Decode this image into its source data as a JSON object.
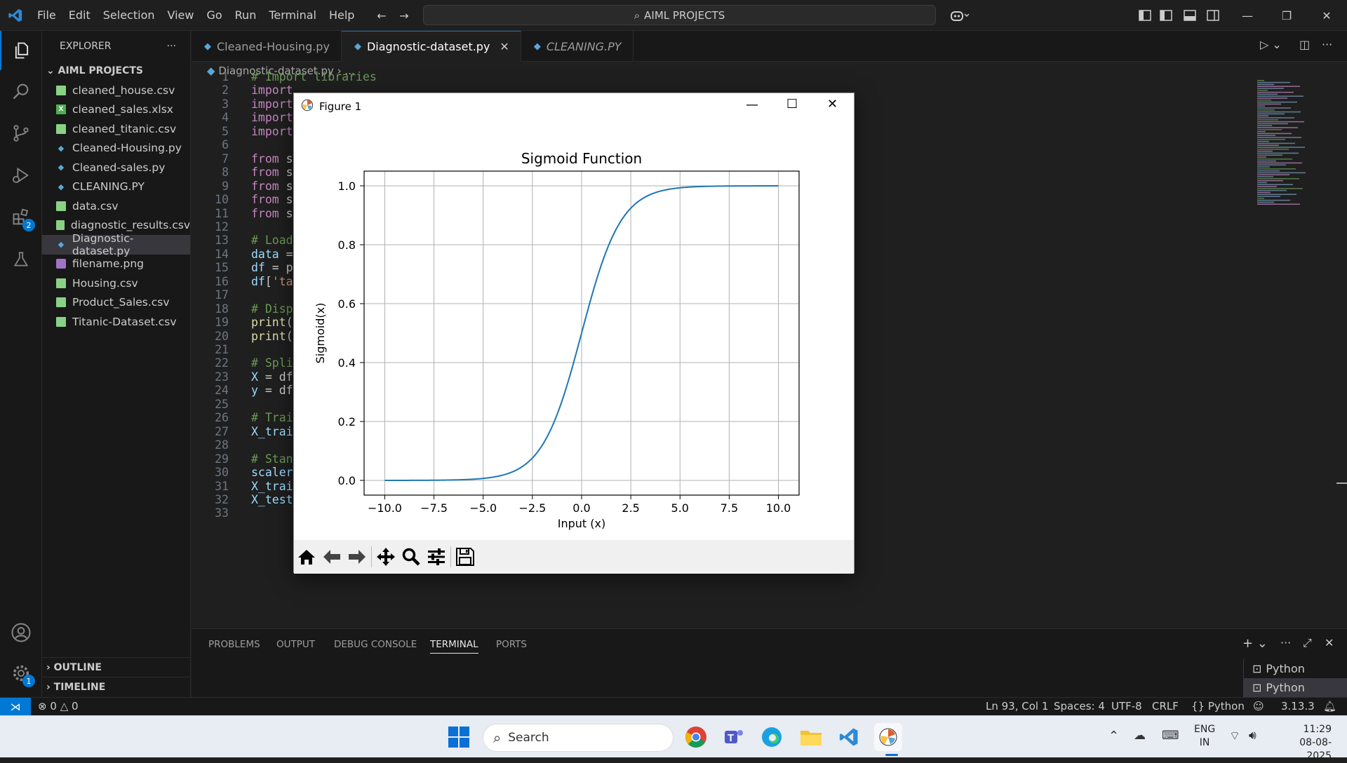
{
  "titlebar": {
    "menu": [
      "File",
      "Edit",
      "Selection",
      "View",
      "Go",
      "Run",
      "Terminal",
      "Help"
    ],
    "command_center": "AIML PROJECTS"
  },
  "activity": {
    "extensions_badge": "2",
    "settings_badge": "1"
  },
  "explorer": {
    "title": "EXPLORER",
    "folder": "AIML PROJECTS",
    "files": [
      {
        "name": "cleaned_house.csv",
        "type": "csv"
      },
      {
        "name": "cleaned_sales.xlsx",
        "type": "xlsx"
      },
      {
        "name": "cleaned_titanic.csv",
        "type": "csv"
      },
      {
        "name": "Cleaned-Housing.py",
        "type": "py"
      },
      {
        "name": "Cleaned-sales.py",
        "type": "py"
      },
      {
        "name": "CLEANING.PY",
        "type": "py"
      },
      {
        "name": "data.csv",
        "type": "csv"
      },
      {
        "name": "diagnostic_results.csv",
        "type": "csv"
      },
      {
        "name": "Diagnostic-dataset.py",
        "type": "py",
        "selected": true
      },
      {
        "name": "filename.png",
        "type": "png"
      },
      {
        "name": "Housing.csv",
        "type": "csv"
      },
      {
        "name": "Product_Sales.csv",
        "type": "csv"
      },
      {
        "name": "Titanic-Dataset.csv",
        "type": "csv"
      }
    ],
    "outline": "OUTLINE",
    "timeline": "TIMELINE"
  },
  "tabs": [
    {
      "label": "Cleaned-Housing.py",
      "active": false
    },
    {
      "label": "Diagnostic-dataset.py",
      "active": true
    },
    {
      "label": "CLEANING.PY",
      "active": false,
      "italic": true
    }
  ],
  "breadcrumb": {
    "file": "Diagnostic-dataset.py",
    "rest": "..."
  },
  "editor": {
    "lines": [
      {
        "n": "1",
        "html": "<span class='cm'># Import libraries</span>"
      },
      {
        "n": "2",
        "html": "<span class='kw'>import</span>"
      },
      {
        "n": "3",
        "html": "<span class='kw'>import</span>"
      },
      {
        "n": "4",
        "html": "<span class='kw'>import</span>"
      },
      {
        "n": "5",
        "html": "<span class='kw'>import</span>"
      },
      {
        "n": "6",
        "html": ""
      },
      {
        "n": "7",
        "html": "<span class='kw'>from</span> s"
      },
      {
        "n": "8",
        "html": "<span class='kw'>from</span> s"
      },
      {
        "n": "9",
        "html": "<span class='kw'>from</span> s"
      },
      {
        "n": "10",
        "html": "<span class='kw'>from</span> s"
      },
      {
        "n": "11",
        "html": "<span class='kw'>from</span> s                                                                    urve"
      },
      {
        "n": "12",
        "html": ""
      },
      {
        "n": "13",
        "html": "<span class='cm'># Load</span>"
      },
      {
        "n": "14",
        "html": "<span class='var'>data</span> ="
      },
      {
        "n": "15",
        "html": "<span class='var'>df</span> = p"
      },
      {
        "n": "16",
        "html": "<span class='var'>df</span>[<span class='str'>'ta</span>"
      },
      {
        "n": "17",
        "html": ""
      },
      {
        "n": "18",
        "html": "<span class='cm'># Disp</span>"
      },
      {
        "n": "19",
        "html": "<span class='fn'>print</span>("
      },
      {
        "n": "20",
        "html": "<span class='fn'>print</span>("
      },
      {
        "n": "21",
        "html": ""
      },
      {
        "n": "22",
        "html": "<span class='cm'># Spli</span>"
      },
      {
        "n": "23",
        "html": "<span class='var'>X</span> = df"
      },
      {
        "n": "24",
        "html": "<span class='var'>y</span> = df"
      },
      {
        "n": "25",
        "html": ""
      },
      {
        "n": "26",
        "html": "<span class='cm'># Trai</span>"
      },
      {
        "n": "27",
        "html": "<span class='var'>X_trai</span>"
      },
      {
        "n": "28",
        "html": ""
      },
      {
        "n": "29",
        "html": "<span class='cm'># Stan</span>"
      },
      {
        "n": "30",
        "html": "<span class='var'>scaler</span> = StandardScaler()"
      },
      {
        "n": "31",
        "html": "<span class='var'>X_train_scaled</span> = <span class='var'>scaler</span>.<span class='fn'>fit_transform</span>(<span class='var'>X_train</span>)"
      },
      {
        "n": "32",
        "html": "<span class='var'>X_test_scaled</span> = <span class='var'>scaler</span>.<span class='fn'>transform</span>(<span class='var'>X_test</span>)"
      },
      {
        "n": "33",
        "html": ""
      }
    ]
  },
  "panel": {
    "tabs": [
      "PROBLEMS",
      "OUTPUT",
      "DEBUG CONSOLE",
      "TERMINAL",
      "PORTS"
    ],
    "active": "TERMINAL",
    "terminals": [
      "Python",
      "Python"
    ]
  },
  "status": {
    "errors": "0",
    "warnings": "0",
    "position": "Ln 93, Col 1",
    "spaces": "Spaces: 4",
    "encoding": "UTF-8",
    "eol": "CRLF",
    "language": "Python",
    "version": "3.13.3"
  },
  "taskbar": {
    "search": "Search",
    "lang1": "ENG",
    "lang2": "IN",
    "time": "11:29",
    "date": "08-08-2025"
  },
  "figure": {
    "window_title": "Figure 1"
  },
  "chart_data": {
    "type": "line",
    "title": "Sigmoid Function",
    "xlabel": "Input (x)",
    "ylabel": "Sigmoid(x)",
    "xlim": [
      -11.05,
      11.05
    ],
    "ylim": [
      -0.05,
      1.05
    ],
    "xticks": [
      -10.0,
      -7.5,
      -5.0,
      -2.5,
      0.0,
      2.5,
      5.0,
      7.5,
      10.0
    ],
    "xtick_labels": [
      "−10.0",
      "−7.5",
      "−5.0",
      "−2.5",
      "0.0",
      "2.5",
      "5.0",
      "7.5",
      "10.0"
    ],
    "yticks": [
      0.0,
      0.2,
      0.4,
      0.6,
      0.8,
      1.0
    ],
    "ytick_labels": [
      "0.0",
      "0.2",
      "0.4",
      "0.6",
      "0.8",
      "1.0"
    ],
    "grid": true,
    "series": [
      {
        "function": "sigmoid",
        "x_range": [
          -10,
          10
        ],
        "color": "#1f77b4"
      }
    ]
  }
}
